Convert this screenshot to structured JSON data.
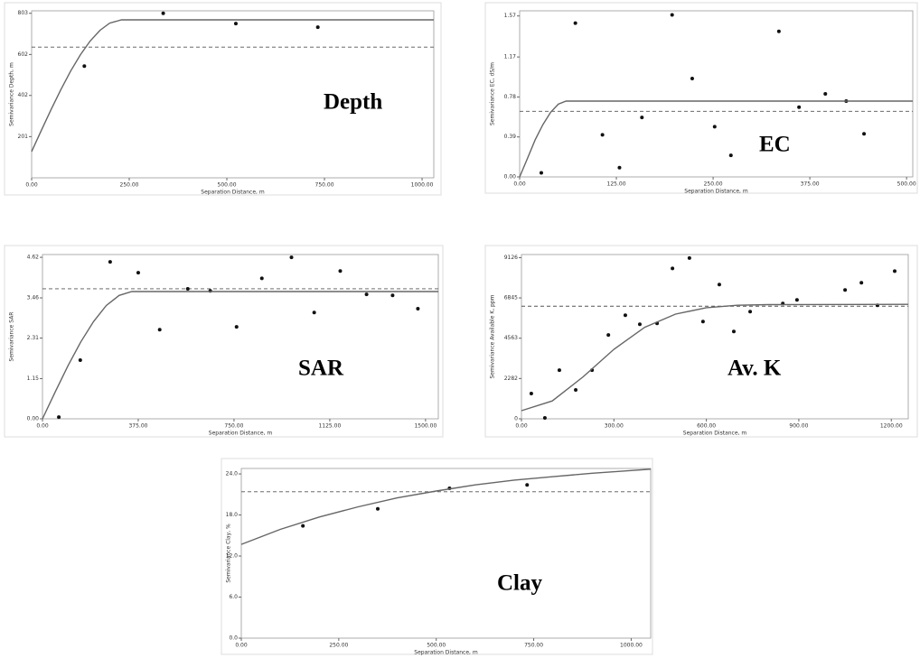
{
  "chart_data": [
    {
      "type": "scatter",
      "annotation": "Depth",
      "x_label": "Separation Distance, m",
      "y_label": "Semivariance Depth, m",
      "xlim": [
        0,
        1030
      ],
      "ylim": [
        0,
        815
      ],
      "xticks": [
        {
          "value": 0,
          "label": "0.00"
        },
        {
          "value": 250,
          "label": "250.00"
        },
        {
          "value": 500,
          "label": "500.00"
        },
        {
          "value": 750,
          "label": "750.00"
        },
        {
          "value": 1000,
          "label": "1000.00"
        }
      ],
      "yticks": [
        201,
        402,
        602,
        803
      ],
      "series": [
        {
          "mode": "markers",
          "color": "#111111",
          "x": [
            135,
            337,
            523,
            733
          ],
          "values": [
            545,
            803,
            753,
            735
          ]
        },
        {
          "mode": "line",
          "color": "#666666",
          "x": [
            0,
            25,
            50,
            75,
            100,
            125,
            150,
            175,
            200,
            230,
            1030
          ],
          "values": [
            128,
            232,
            334,
            431,
            521,
            601,
            668,
            720,
            755,
            771,
            771
          ]
        }
      ],
      "sill": 638
    },
    {
      "type": "scatter",
      "annotation": "EC",
      "x_label": "Separation Distance, m",
      "y_label": "Semivariance EC, dS/m",
      "xlim": [
        0,
        508
      ],
      "ylim": [
        0,
        1.62
      ],
      "xticks": [
        {
          "value": 0,
          "label": "0.00"
        },
        {
          "value": 125,
          "label": "125.00"
        },
        {
          "value": 250,
          "label": "250.00"
        },
        {
          "value": 375,
          "label": "375.00"
        },
        {
          "value": 500,
          "label": "500.00"
        }
      ],
      "yticks": [
        {
          "value": 0,
          "label": "0.00"
        },
        0.39,
        0.78,
        1.17,
        1.57
      ],
      "series": [
        {
          "mode": "markers",
          "color": "#111111",
          "x": [
            28,
            72,
            107,
            129,
            158,
            197,
            223,
            252,
            273,
            335,
            361,
            395,
            422,
            445
          ],
          "values": [
            0.04,
            1.5,
            0.41,
            0.09,
            0.58,
            1.58,
            0.96,
            0.49,
            0.21,
            1.42,
            0.68,
            0.81,
            0.74,
            0.42
          ]
        },
        {
          "mode": "line",
          "color": "#666666",
          "x": [
            0,
            10,
            20,
            30,
            40,
            50,
            60,
            508
          ],
          "values": [
            0,
            0.18,
            0.36,
            0.51,
            0.63,
            0.71,
            0.74,
            0.74
          ]
        }
      ],
      "sill": 0.64
    },
    {
      "type": "scatter",
      "annotation": "SAR",
      "x_label": "Separation Distance, m",
      "y_label": "Semivariance SAR",
      "xlim": [
        0,
        1550
      ],
      "ylim": [
        0,
        4.7
      ],
      "xticks": [
        {
          "value": 0,
          "label": "0.00"
        },
        {
          "value": 375,
          "label": "375.00"
        },
        {
          "value": 750,
          "label": "750.00"
        },
        {
          "value": 1125,
          "label": "1125.00"
        },
        {
          "value": 1500,
          "label": "1500.00"
        }
      ],
      "yticks": [
        {
          "value": 0,
          "label": "0.00"
        },
        1.15,
        2.31,
        3.46,
        4.62
      ],
      "series": [
        {
          "mode": "markers",
          "color": "#111111",
          "x": [
            64,
            148,
            265,
            375,
            459,
            569,
            657,
            760,
            859,
            975,
            1064,
            1166,
            1269,
            1371,
            1470
          ],
          "values": [
            0.05,
            1.68,
            4.49,
            4.18,
            2.55,
            3.72,
            3.66,
            2.63,
            4.02,
            4.62,
            3.04,
            4.23,
            3.56,
            3.53,
            3.15
          ]
        },
        {
          "mode": "line",
          "color": "#666666",
          "x": [
            0,
            50,
            100,
            150,
            200,
            250,
            300,
            350,
            1550
          ],
          "values": [
            0,
            0.77,
            1.52,
            2.2,
            2.78,
            3.24,
            3.53,
            3.64,
            3.64
          ]
        }
      ],
      "sill": 3.72
    },
    {
      "type": "scatter",
      "annotation": "Av. K",
      "x_label": "Separation Distance, m",
      "y_label": "Semivariance Available K, ppm",
      "xlim": [
        0,
        1255
      ],
      "ylim": [
        0,
        9300
      ],
      "xticks": [
        {
          "value": 0,
          "label": "0.00"
        },
        {
          "value": 300,
          "label": "300.00"
        },
        {
          "value": 600,
          "label": "600.00"
        },
        {
          "value": 900,
          "label": "900.00"
        },
        {
          "value": 1200,
          "label": "1200.00"
        }
      ],
      "yticks": [
        0,
        2282,
        4563,
        6845,
        9126
      ],
      "series": [
        {
          "mode": "markers",
          "color": "#111111",
          "x": [
            32,
            76,
            123,
            176,
            229,
            282,
            337,
            384,
            440,
            490,
            545,
            589,
            642,
            689,
            742,
            848,
            894,
            1050,
            1103,
            1155,
            1211
          ],
          "values": [
            1428,
            51,
            2754,
            1632,
            2754,
            4743,
            5865,
            5355,
            5406,
            8517,
            9100,
            5508,
            7599,
            4947,
            6069,
            6528,
            6732,
            7293,
            7701,
            6426,
            8364
          ]
        },
        {
          "mode": "line",
          "color": "#666666",
          "x": [
            0,
            100,
            200,
            300,
            400,
            500,
            600,
            700,
            800,
            1255
          ],
          "values": [
            460,
            1010,
            2374,
            3934,
            5180,
            5930,
            6288,
            6426,
            6466,
            6480
          ]
        }
      ],
      "sill": 6375
    },
    {
      "type": "scatter",
      "annotation": "Clay",
      "x_label": "Separation Distance, m",
      "y_label": "Semivariance Clay, %",
      "xlim": [
        0,
        1050
      ],
      "ylim": [
        0,
        24.8
      ],
      "xticks": [
        {
          "value": 0,
          "label": "0.00"
        },
        {
          "value": 250,
          "label": "250.00"
        },
        {
          "value": 500,
          "label": "500.00"
        },
        {
          "value": 750,
          "label": "750.00"
        },
        {
          "value": 1000,
          "label": "1000.00"
        }
      ],
      "yticks": [
        {
          "value": 0,
          "label": "0.0"
        },
        {
          "value": 6,
          "label": "6.0"
        },
        {
          "value": 12,
          "label": "12.0"
        },
        {
          "value": 18,
          "label": "18.0"
        },
        {
          "value": 24,
          "label": "24.0"
        }
      ],
      "series": [
        {
          "mode": "markers",
          "color": "#111111",
          "x": [
            158,
            350,
            534,
            733
          ],
          "values": [
            16.4,
            18.9,
            21.9,
            22.4
          ]
        },
        {
          "mode": "line",
          "color": "#666666",
          "x": [
            0,
            100,
            200,
            300,
            400,
            500,
            600,
            700,
            800,
            900,
            1050
          ],
          "values": [
            13.7,
            15.9,
            17.7,
            19.2,
            20.5,
            21.5,
            22.4,
            23.1,
            23.6,
            24.1,
            24.7
          ]
        }
      ],
      "sill": 21.4
    }
  ]
}
